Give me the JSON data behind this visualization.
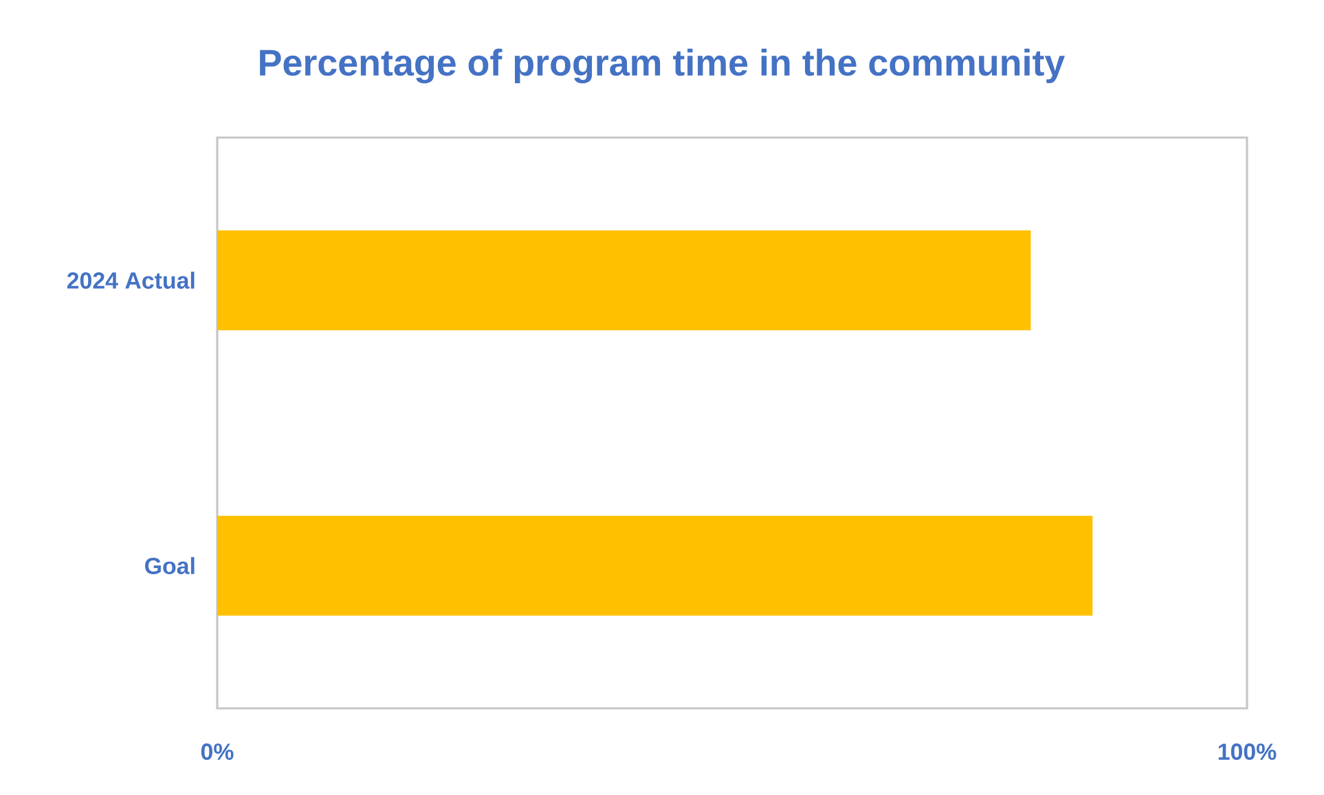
{
  "chart_data": {
    "type": "bar",
    "orientation": "horizontal",
    "title": "Percentage of program time in the community",
    "categories": [
      "2024 Actual",
      "Goal"
    ],
    "values": [
      79,
      85
    ],
    "color": "#ffc000",
    "xlim": [
      0,
      100
    ],
    "xticks": [
      {
        "value": 0,
        "label": "0%"
      },
      {
        "value": 100,
        "label": "100%"
      }
    ]
  }
}
